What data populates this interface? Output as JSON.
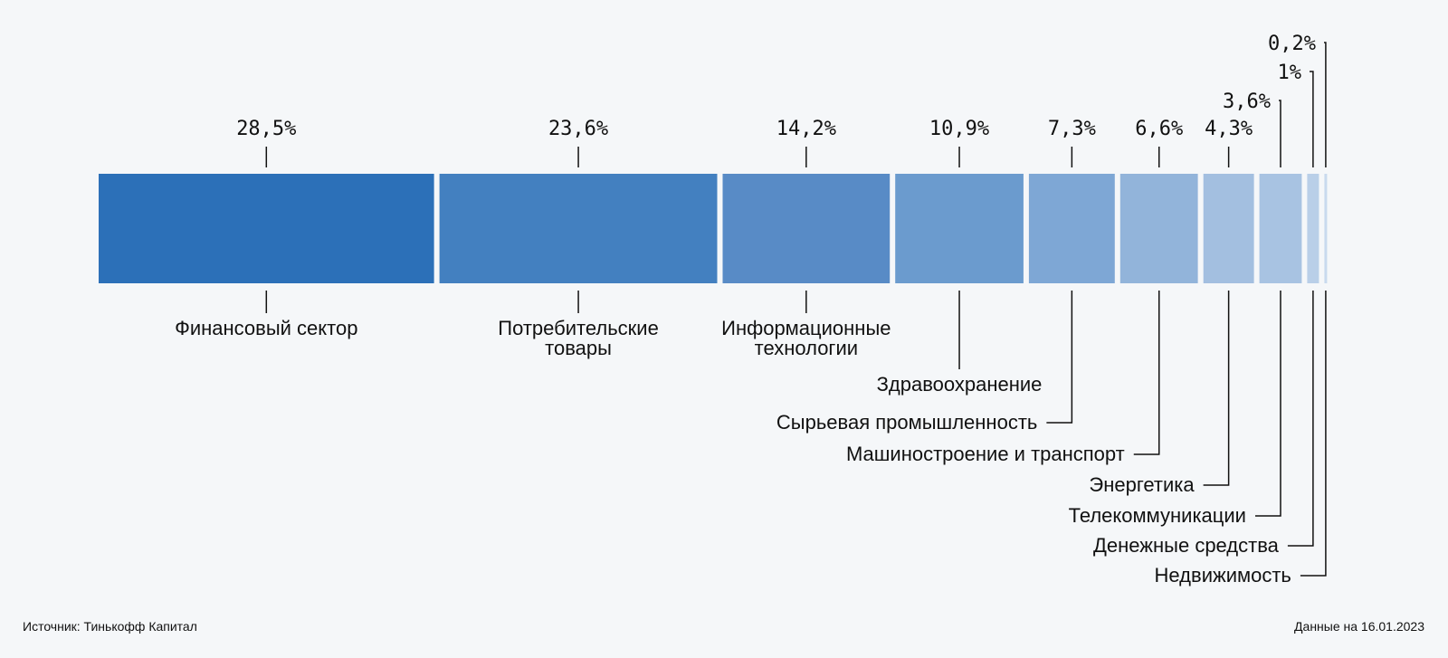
{
  "chart_data": {
    "type": "bar",
    "orientation": "horizontal-stacked-100",
    "unit": "%",
    "series": [
      {
        "category": "Финансовый сектор",
        "value": 28.5,
        "value_label": "28,5%",
        "color": "#2c70b8"
      },
      {
        "category": "Потребительские товары",
        "value": 23.6,
        "value_label": "23,6%",
        "color": "#4380c0"
      },
      {
        "category": "Информационные технологии",
        "value": 14.2,
        "value_label": "14,2%",
        "color": "#588bc6"
      },
      {
        "category": "Здравоохранение",
        "value": 10.9,
        "value_label": "10,9%",
        "color": "#6b9bce"
      },
      {
        "category": "Сырьевая промышленность",
        "value": 7.3,
        "value_label": "7,3%",
        "color": "#7ea7d5"
      },
      {
        "category": "Машиностроение и транспорт",
        "value": 6.6,
        "value_label": "6,6%",
        "color": "#92b4da"
      },
      {
        "category": "Энергетика",
        "value": 4.3,
        "value_label": "4,3%",
        "color": "#a3bfe0"
      },
      {
        "category": "Телекоммуникации",
        "value": 3.6,
        "value_label": "3,6%",
        "color": "#a8c3e2"
      },
      {
        "category": "Денежные средства",
        "value": 1,
        "value_label": "1%",
        "color": "#b9cfe8"
      },
      {
        "category": "Недвижимость",
        "value": 0.2,
        "value_label": "0,2%",
        "color": "#c9daee"
      }
    ],
    "grid": false,
    "legend": "none"
  },
  "footer": {
    "source": "Источник: Тинькофф Капитал",
    "date": "Данные на 16.01.2023"
  }
}
